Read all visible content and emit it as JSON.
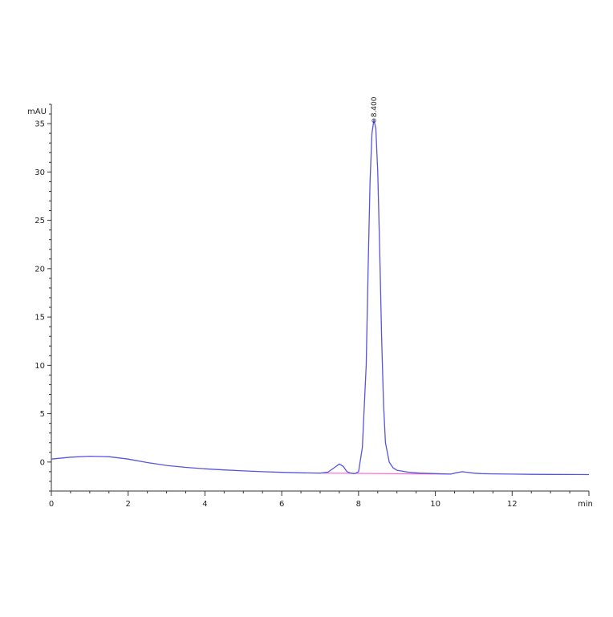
{
  "chart_data": {
    "type": "line",
    "ylabel": "mAU",
    "xlabel": "min",
    "xlim": [
      0,
      14
    ],
    "ylim": [
      -3,
      37
    ],
    "xticks": [
      0,
      2,
      4,
      6,
      8,
      10,
      12
    ],
    "yticks": [
      0,
      5,
      10,
      15,
      20,
      25,
      30,
      35
    ],
    "grid": false,
    "legend": "none",
    "series": [
      {
        "color": "#5555dd",
        "x": [
          0,
          0.5,
          1.0,
          1.5,
          2.0,
          2.5,
          3.0,
          3.5,
          4.0,
          4.5,
          5.0,
          5.5,
          6.0,
          6.5,
          7.0,
          7.2,
          7.4,
          7.5,
          7.6,
          7.7,
          7.8,
          7.9,
          8.0,
          8.1,
          8.2,
          8.25,
          8.3,
          8.35,
          8.4,
          8.45,
          8.5,
          8.55,
          8.6,
          8.65,
          8.7,
          8.8,
          8.9,
          9.0,
          9.3,
          9.6,
          10.0,
          10.4,
          10.5,
          10.7,
          10.8,
          11.0,
          11.2,
          11.5,
          12.0,
          12.5,
          13.0,
          13.5,
          14.0
        ],
        "y": [
          0.3,
          0.5,
          0.6,
          0.55,
          0.3,
          -0.05,
          -0.35,
          -0.55,
          -0.7,
          -0.82,
          -0.92,
          -1.0,
          -1.07,
          -1.12,
          -1.15,
          -1.05,
          -0.5,
          -0.2,
          -0.45,
          -1.0,
          -1.15,
          -1.2,
          -1.0,
          1.5,
          10.0,
          20.0,
          29.0,
          34.0,
          35.4,
          34.5,
          30.0,
          22.0,
          13.0,
          6.0,
          2.0,
          0.0,
          -0.6,
          -0.85,
          -1.05,
          -1.15,
          -1.2,
          -1.25,
          -1.15,
          -1.0,
          -1.05,
          -1.15,
          -1.2,
          -1.22,
          -1.25,
          -1.27,
          -1.28,
          -1.29,
          -1.3
        ]
      }
    ],
    "baseline": {
      "color": "#ff66dd",
      "x": [
        7.05,
        10.4
      ],
      "y": [
        -1.15,
        -1.25
      ]
    },
    "peak_label": {
      "text": "8.400",
      "x": 8.4,
      "y": 35.4
    }
  }
}
